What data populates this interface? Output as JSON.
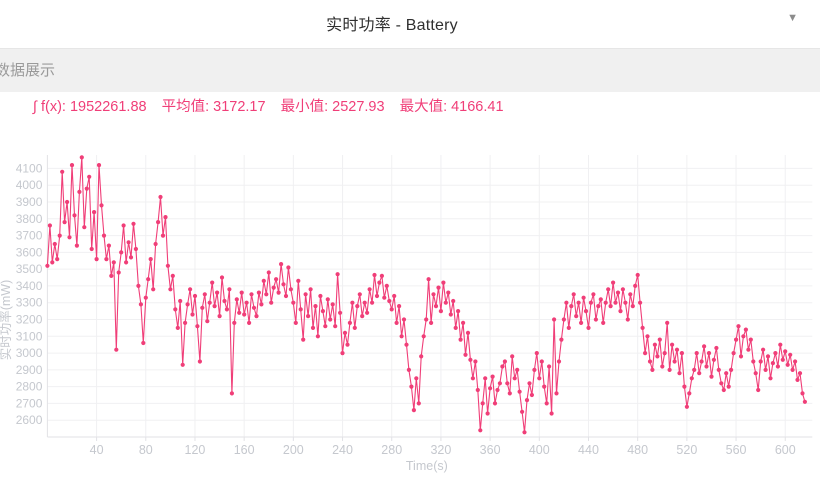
{
  "header": {
    "title": "实时功率 - Battery",
    "caret_glyph": "▼"
  },
  "section_bar": {
    "label": "数据展示"
  },
  "stats": {
    "color": "#f03e78",
    "items": [
      {
        "label": "∫ f(x):",
        "value": "1952261.88"
      },
      {
        "label": "平均值:",
        "value": "3172.17"
      },
      {
        "label": "最小值:",
        "value": "2527.93"
      },
      {
        "label": "最大值:",
        "value": "4166.41"
      }
    ]
  },
  "chart_data": {
    "type": "line",
    "title": "实时功率 - Battery",
    "xlabel": "Time(s)",
    "ylabel": "实时功率(mW)",
    "series_name": "实时功率",
    "series_color": "#f03e78",
    "marker": "circle",
    "grid": true,
    "legend_position": "none",
    "xlim": [
      0,
      622
    ],
    "ylim": [
      2500,
      4180
    ],
    "x_ticks": [
      40,
      80,
      120,
      160,
      200,
      240,
      280,
      320,
      360,
      400,
      440,
      480,
      520,
      560,
      600
    ],
    "y_ticks": [
      2600,
      2700,
      2800,
      2900,
      3000,
      3100,
      3200,
      3300,
      3400,
      3500,
      3600,
      3700,
      3800,
      3900,
      4000,
      4100
    ],
    "integral": 1952261.88,
    "mean": 3172.17,
    "min": 2527.93,
    "max": 4166.41,
    "x_start": 0,
    "x_step": 2,
    "values": [
      3520,
      3760,
      3540,
      3650,
      3560,
      3700,
      4080,
      3780,
      3900,
      3690,
      4120,
      3820,
      3640,
      3960,
      4166,
      3750,
      3980,
      4050,
      3620,
      3840,
      3560,
      4120,
      3880,
      3700,
      3560,
      3640,
      3460,
      3540,
      3020,
      3480,
      3600,
      3760,
      3540,
      3660,
      3570,
      3770,
      3620,
      3400,
      3290,
      3060,
      3330,
      3440,
      3560,
      3380,
      3650,
      3780,
      3930,
      3700,
      3810,
      3520,
      3380,
      3460,
      3260,
      3150,
      3310,
      2930,
      3180,
      3290,
      3380,
      3230,
      3340,
      3160,
      2950,
      3270,
      3350,
      3190,
      3300,
      3420,
      3280,
      3360,
      3220,
      3450,
      3310,
      3260,
      3380,
      2760,
      3180,
      3320,
      3240,
      3360,
      3230,
      3300,
      3180,
      3350,
      3270,
      3220,
      3360,
      3290,
      3430,
      3350,
      3480,
      3300,
      3390,
      3440,
      3360,
      3530,
      3410,
      3340,
      3510,
      3380,
      3300,
      3180,
      3430,
      3260,
      3080,
      3350,
      3220,
      3380,
      3150,
      3280,
      3100,
      3340,
      3250,
      3160,
      3320,
      3200,
      3290,
      3160,
      3470,
      3240,
      3000,
      3120,
      3050,
      3180,
      3300,
      3150,
      3280,
      3350,
      3220,
      3300,
      3240,
      3380,
      3300,
      3465,
      3340,
      3420,
      3460,
      3330,
      3400,
      3310,
      3260,
      3340,
      3180,
      3280,
      3100,
      3200,
      3050,
      2900,
      2800,
      2660,
      2850,
      2700,
      2980,
      3100,
      3200,
      3440,
      3180,
      3350,
      3280,
      3390,
      3250,
      3420,
      3300,
      3360,
      3230,
      3310,
      3150,
      3250,
      3080,
      3180,
      2990,
      3120,
      2960,
      2850,
      2950,
      2780,
      2540,
      2700,
      2850,
      2640,
      2790,
      2860,
      2700,
      2780,
      2820,
      2920,
      2950,
      2820,
      2760,
      2980,
      2850,
      2900,
      2770,
      2650,
      2528,
      2720,
      2820,
      2750,
      2900,
      3000,
      2850,
      2950,
      2800,
      2700,
      2920,
      2640,
      3200,
      2760,
      2950,
      3080,
      3200,
      3300,
      3150,
      3280,
      3350,
      3220,
      3300,
      3180,
      3330,
      3250,
      3150,
      3300,
      3350,
      3200,
      3280,
      3320,
      3180,
      3300,
      3380,
      3280,
      3420,
      3300,
      3360,
      3250,
      3380,
      3300,
      3200,
      3350,
      3280,
      3400,
      3465,
      3300,
      3150,
      3000,
      3100,
      2950,
      2900,
      3050,
      2980,
      3080,
      2920,
      3000,
      3180,
      2900,
      3050,
      2950,
      3020,
      2880,
      3000,
      2800,
      2680,
      2760,
      2850,
      2900,
      3000,
      2880,
      2950,
      3040,
      2920,
      3000,
      2860,
      2960,
      3030,
      2900,
      2820,
      2780,
      2880,
      2800,
      2900,
      3000,
      3080,
      3160,
      2980,
      3100,
      3140,
      3020,
      3080,
      2950,
      2880,
      2780,
      2950,
      3020,
      2900,
      2980,
      2850,
      2940,
      3000,
      2920,
      3050,
      2960,
      3010,
      2930,
      2990,
      2900,
      2950,
      2840,
      2880,
      2760,
      2710
    ]
  },
  "axis_style": {
    "tick_label_color": "#c5c8ce",
    "axis_line_color": "#e2e2e6",
    "grid_line_color": "#f0f0f2"
  }
}
